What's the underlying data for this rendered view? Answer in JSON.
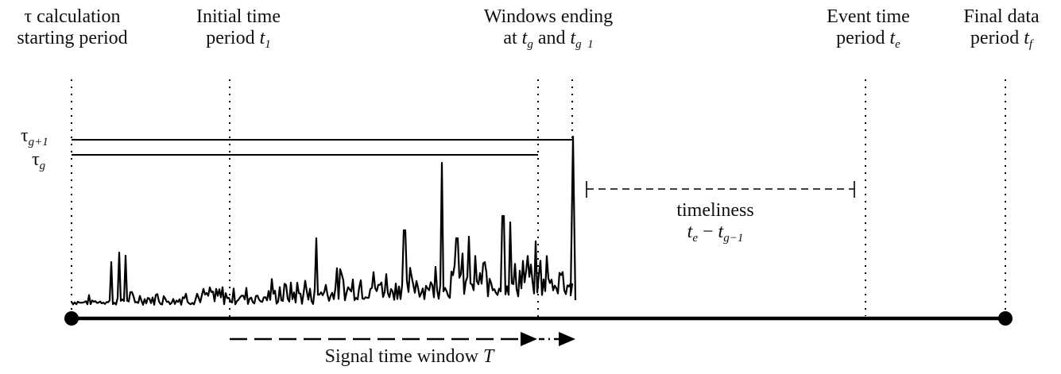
{
  "labels": {
    "tau_start": {
      "line1": "τ calculation",
      "line2": "starting period"
    },
    "initial": {
      "line1": "Initial time",
      "line2_text": "period ",
      "line2_var": "t",
      "line2_sub": "1"
    },
    "windows": {
      "line1": "Windows ending",
      "at": "at ",
      "tg_var": "t",
      "tg_sub": "g",
      "and": " and ",
      "tg1_var": "t",
      "tg1_sub": "g  1"
    },
    "event": {
      "line1": "Event time",
      "line2_text": "period ",
      "line2_var": "t",
      "line2_sub": "e"
    },
    "final": {
      "line1": "Final data",
      "line2_text": "period ",
      "line2_var": "t",
      "line2_sub": "f"
    },
    "tau_g1": {
      "sym": "τ",
      "sub": "g+1"
    },
    "tau_g": {
      "sym": "τ",
      "sub": "g"
    },
    "timeliness": {
      "word": "timeliness",
      "te_var": "t",
      "te_sub": "e",
      "minus": " − ",
      "tg_var": "t",
      "tg_sub": "g−1"
    },
    "signal": {
      "text": "Signal time window ",
      "var": "T"
    }
  },
  "colors": {
    "ink": "#000000",
    "background": "#ffffff"
  }
}
